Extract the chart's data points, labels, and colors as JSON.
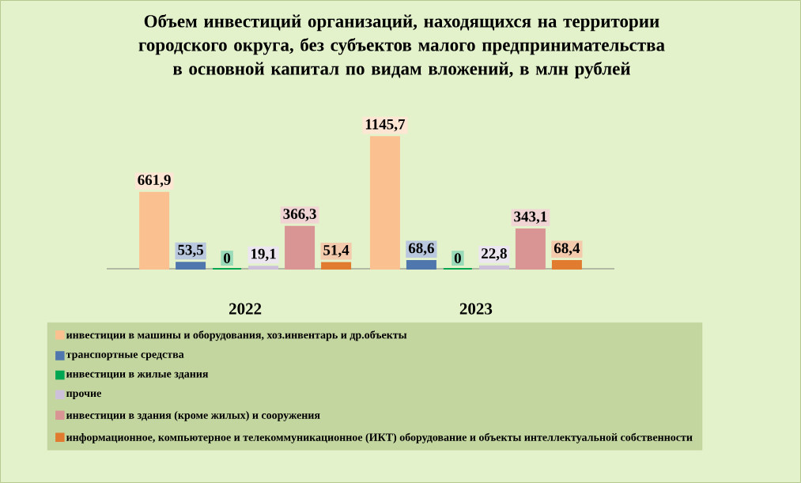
{
  "chart_data": {
    "type": "bar",
    "title": "Объем инвестиций организаций, находящихся на территории городского округа, без субъектов малого предпринимательства в основной капитал по видам вложений, в млн рублей",
    "categories": [
      "2022",
      "2023"
    ],
    "legend": "bottom",
    "series": [
      {
        "name": "инвестиции в машины и оборудования, хоз.инвентарь и др.объекты",
        "color": "#fac090",
        "values": [
          661.9,
          1145.7
        ],
        "value_labels": [
          "661,9",
          "1145,7"
        ]
      },
      {
        "name": "транспортные средства",
        "color": "#4f76ad",
        "values": [
          53.5,
          68.6
        ],
        "value_labels": [
          "53,5",
          "68,6"
        ]
      },
      {
        "name": "инвестиции в жилые здания",
        "color": "#00a651",
        "values": [
          0,
          0
        ],
        "value_labels": [
          "0",
          "0"
        ]
      },
      {
        "name": "прочие",
        "color": "#ccc0da",
        "values": [
          19.1,
          22.8
        ],
        "value_labels": [
          "19,1",
          "22,8"
        ]
      },
      {
        "name": "инвестиции в здания (кроме жилых) и сооружения",
        "color": "#d99594",
        "values": [
          366.3,
          343.1
        ],
        "value_labels": [
          "366,3",
          "343,1"
        ]
      },
      {
        "name": "информационное, компьютерное и телекоммуникационное (ИКТ) оборудование и объекты интеллектуальной собственности",
        "color": "#e07b30",
        "values": [
          51.4,
          68.4
        ],
        "value_labels": [
          "51,4",
          "68,4"
        ]
      }
    ]
  }
}
